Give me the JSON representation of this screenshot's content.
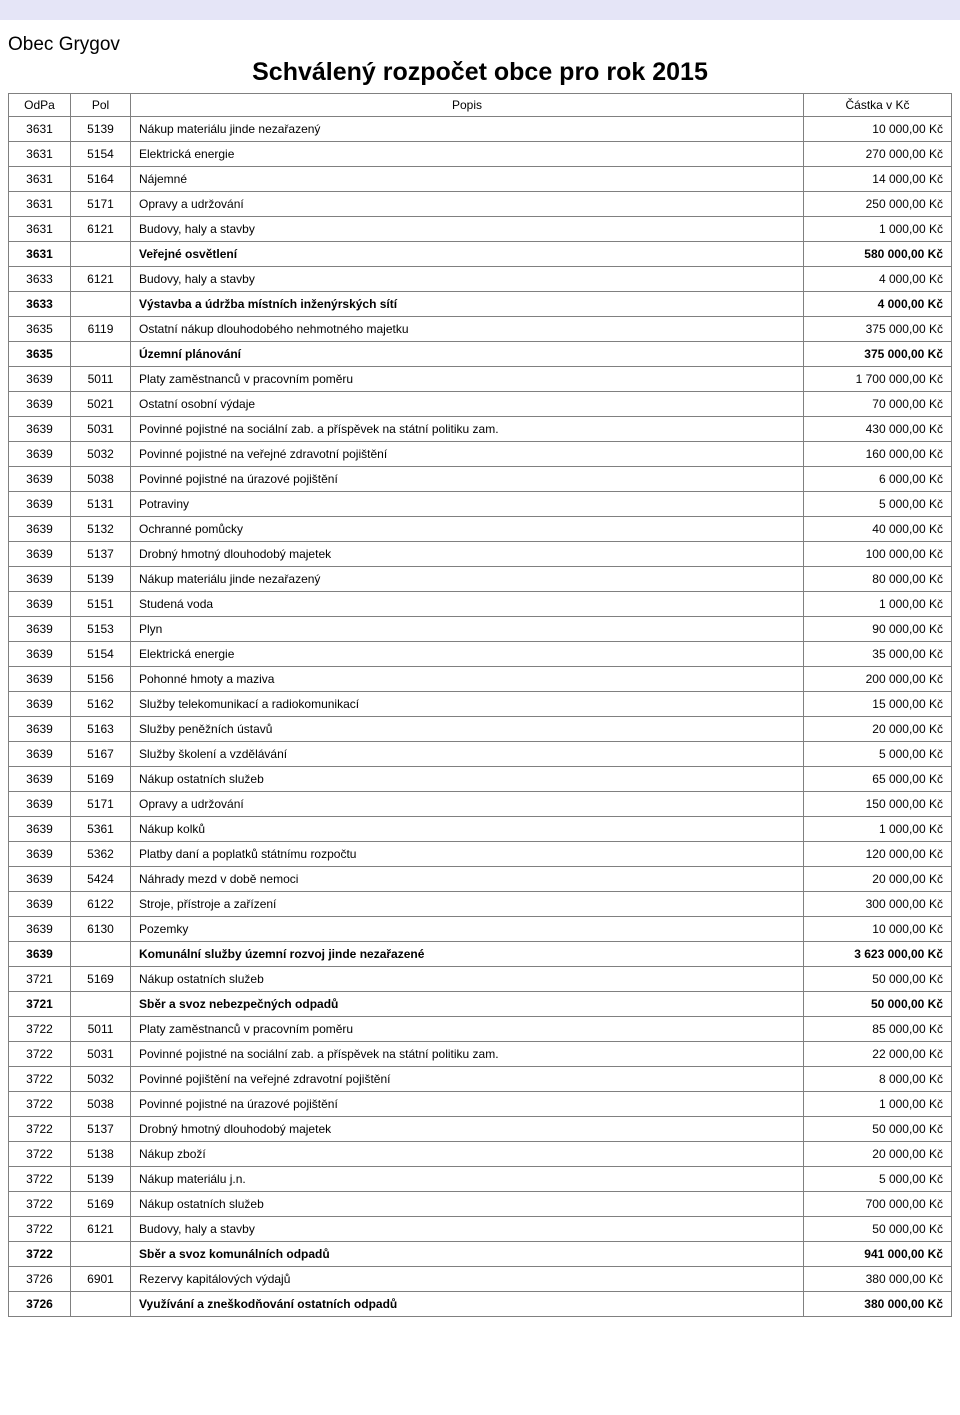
{
  "header": {
    "municipality": "Obec Grygov",
    "title": "Schválený rozpočet obce pro rok 2015"
  },
  "columns": {
    "odpa": "OdPa",
    "pol": "Pol",
    "popis": "Popis",
    "amount": "Částka v Kč"
  },
  "rows": [
    {
      "odpa": "3631",
      "pol": "5139",
      "popis": "Nákup materiálu jinde nezařazený",
      "amount": "10 000,00 Kč",
      "bold": false
    },
    {
      "odpa": "3631",
      "pol": "5154",
      "popis": "Elektrická energie",
      "amount": "270 000,00 Kč",
      "bold": false
    },
    {
      "odpa": "3631",
      "pol": "5164",
      "popis": "Nájemné",
      "amount": "14 000,00 Kč",
      "bold": false
    },
    {
      "odpa": "3631",
      "pol": "5171",
      "popis": "Opravy a udržování",
      "amount": "250 000,00 Kč",
      "bold": false
    },
    {
      "odpa": "3631",
      "pol": "6121",
      "popis": "Budovy, haly a stavby",
      "amount": "1 000,00 Kč",
      "bold": false
    },
    {
      "odpa": "3631",
      "pol": "",
      "popis": "Veřejné osvětlení",
      "amount": "580 000,00 Kč",
      "bold": true
    },
    {
      "odpa": "3633",
      "pol": "6121",
      "popis": "Budovy, haly a stavby",
      "amount": "4 000,00 Kč",
      "bold": false
    },
    {
      "odpa": "3633",
      "pol": "",
      "popis": "Výstavba a údržba místních inženýrských sítí",
      "amount": "4 000,00 Kč",
      "bold": true
    },
    {
      "odpa": "3635",
      "pol": "6119",
      "popis": "Ostatní nákup dlouhodobého nehmotného majetku",
      "amount": "375 000,00 Kč",
      "bold": false
    },
    {
      "odpa": "3635",
      "pol": "",
      "popis": "Územní plánování",
      "amount": "375 000,00 Kč",
      "bold": true
    },
    {
      "odpa": "3639",
      "pol": "5011",
      "popis": "Platy zaměstnanců v pracovním poměru",
      "amount": "1 700 000,00 Kč",
      "bold": false
    },
    {
      "odpa": "3639",
      "pol": "5021",
      "popis": "Ostatní osobní výdaje",
      "amount": "70 000,00 Kč",
      "bold": false
    },
    {
      "odpa": "3639",
      "pol": "5031",
      "popis": "Povinné pojistné na sociální zab. a příspěvek na státní politiku zam.",
      "amount": "430 000,00 Kč",
      "bold": false
    },
    {
      "odpa": "3639",
      "pol": "5032",
      "popis": "Povinné pojistné na veřejné zdravotní pojištění",
      "amount": "160 000,00 Kč",
      "bold": false
    },
    {
      "odpa": "3639",
      "pol": "5038",
      "popis": "Povinné pojistné na úrazové pojištění",
      "amount": "6 000,00 Kč",
      "bold": false
    },
    {
      "odpa": "3639",
      "pol": "5131",
      "popis": "Potraviny",
      "amount": "5 000,00 Kč",
      "bold": false
    },
    {
      "odpa": "3639",
      "pol": "5132",
      "popis": "Ochranné pomůcky",
      "amount": "40 000,00 Kč",
      "bold": false
    },
    {
      "odpa": "3639",
      "pol": "5137",
      "popis": "Drobný hmotný dlouhodobý majetek",
      "amount": "100 000,00 Kč",
      "bold": false
    },
    {
      "odpa": "3639",
      "pol": "5139",
      "popis": "Nákup materiálu jinde nezařazený",
      "amount": "80 000,00 Kč",
      "bold": false
    },
    {
      "odpa": "3639",
      "pol": "5151",
      "popis": "Studená voda",
      "amount": "1 000,00 Kč",
      "bold": false
    },
    {
      "odpa": "3639",
      "pol": "5153",
      "popis": "Plyn",
      "amount": "90 000,00 Kč",
      "bold": false
    },
    {
      "odpa": "3639",
      "pol": "5154",
      "popis": "Elektrická energie",
      "amount": "35 000,00 Kč",
      "bold": false
    },
    {
      "odpa": "3639",
      "pol": "5156",
      "popis": "Pohonné hmoty a maziva",
      "amount": "200 000,00 Kč",
      "bold": false
    },
    {
      "odpa": "3639",
      "pol": "5162",
      "popis": "Služby telekomunikací a radiokomunikací",
      "amount": "15 000,00 Kč",
      "bold": false
    },
    {
      "odpa": "3639",
      "pol": "5163",
      "popis": "Služby peněžních ústavů",
      "amount": "20 000,00 Kč",
      "bold": false
    },
    {
      "odpa": "3639",
      "pol": "5167",
      "popis": "Služby školení a vzdělávání",
      "amount": "5 000,00 Kč",
      "bold": false
    },
    {
      "odpa": "3639",
      "pol": "5169",
      "popis": "Nákup ostatních služeb",
      "amount": "65 000,00 Kč",
      "bold": false
    },
    {
      "odpa": "3639",
      "pol": "5171",
      "popis": "Opravy a udržování",
      "amount": "150 000,00 Kč",
      "bold": false
    },
    {
      "odpa": "3639",
      "pol": "5361",
      "popis": "Nákup kolků",
      "amount": "1 000,00 Kč",
      "bold": false
    },
    {
      "odpa": "3639",
      "pol": "5362",
      "popis": "Platby daní a poplatků státnímu rozpočtu",
      "amount": "120 000,00 Kč",
      "bold": false
    },
    {
      "odpa": "3639",
      "pol": "5424",
      "popis": "Náhrady mezd v době nemoci",
      "amount": "20 000,00 Kč",
      "bold": false
    },
    {
      "odpa": "3639",
      "pol": "6122",
      "popis": "Stroje, přístroje a zařízení",
      "amount": "300 000,00 Kč",
      "bold": false
    },
    {
      "odpa": "3639",
      "pol": "6130",
      "popis": "Pozemky",
      "amount": "10 000,00 Kč",
      "bold": false
    },
    {
      "odpa": "3639",
      "pol": "",
      "popis": "Komunální služby územní rozvoj jinde nezařazené",
      "amount": "3 623 000,00 Kč",
      "bold": true
    },
    {
      "odpa": "3721",
      "pol": "5169",
      "popis": "Nákup ostatních služeb",
      "amount": "50 000,00 Kč",
      "bold": false
    },
    {
      "odpa": "3721",
      "pol": "",
      "popis": "Sběr a svoz nebezpečných odpadů",
      "amount": "50 000,00 Kč",
      "bold": true
    },
    {
      "odpa": "3722",
      "pol": "5011",
      "popis": "Platy zaměstnanců v pracovním poměru",
      "amount": "85 000,00 Kč",
      "bold": false
    },
    {
      "odpa": "3722",
      "pol": "5031",
      "popis": "Povinné pojistné na sociální zab. a příspěvek na státní politiku zam.",
      "amount": "22 000,00 Kč",
      "bold": false
    },
    {
      "odpa": "3722",
      "pol": "5032",
      "popis": "Povinné pojištění na veřejné zdravotní pojištění",
      "amount": "8 000,00 Kč",
      "bold": false
    },
    {
      "odpa": "3722",
      "pol": "5038",
      "popis": "Povinné pojistné na úrazové pojištění",
      "amount": "1 000,00 Kč",
      "bold": false
    },
    {
      "odpa": "3722",
      "pol": "5137",
      "popis": "Drobný hmotný dlouhodobý majetek",
      "amount": "50 000,00 Kč",
      "bold": false
    },
    {
      "odpa": "3722",
      "pol": "5138",
      "popis": "Nákup zboží",
      "amount": "20 000,00 Kč",
      "bold": false
    },
    {
      "odpa": "3722",
      "pol": "5139",
      "popis": "Nákup materiálu j.n.",
      "amount": "5 000,00 Kč",
      "bold": false
    },
    {
      "odpa": "3722",
      "pol": "5169",
      "popis": "Nákup ostatních služeb",
      "amount": "700 000,00 Kč",
      "bold": false
    },
    {
      "odpa": "3722",
      "pol": "6121",
      "popis": "Budovy, haly a stavby",
      "amount": "50 000,00 Kč",
      "bold": false
    },
    {
      "odpa": "3722",
      "pol": "",
      "popis": "Sběr a svoz komunálních odpadů",
      "amount": "941 000,00 Kč",
      "bold": true
    },
    {
      "odpa": "3726",
      "pol": "6901",
      "popis": "Rezervy kapitálových výdajů",
      "amount": "380 000,00 Kč",
      "bold": false
    },
    {
      "odpa": "3726",
      "pol": "",
      "popis": "Využívání a zneškodňování ostatních odpadů",
      "amount": "380 000,00 Kč",
      "bold": true
    }
  ],
  "style": {
    "topbar_color": "#e5e5f7",
    "border_color": "#808080",
    "font_family": "Arial",
    "body_font_size": 12,
    "title_font_size": 25,
    "municipality_font_size": 19
  }
}
